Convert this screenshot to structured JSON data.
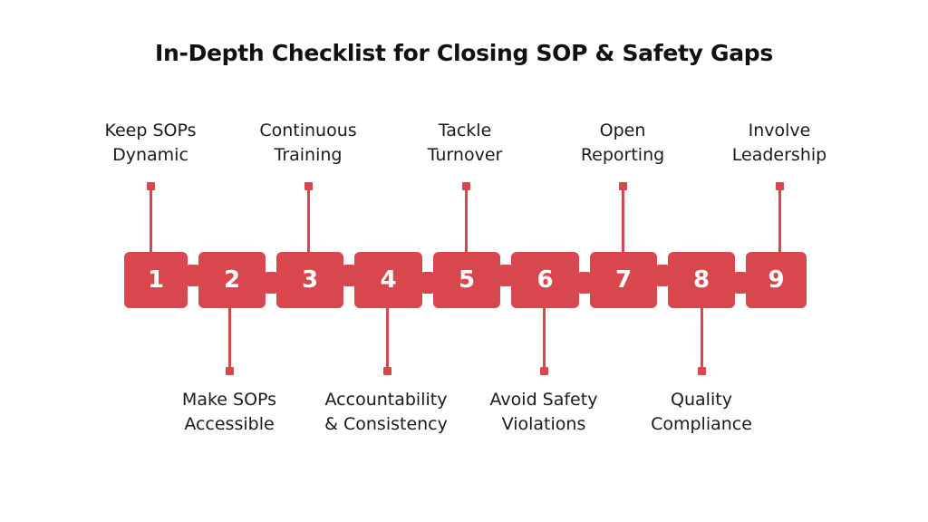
{
  "title": "In-Depth Checklist for Closing SOP & Safety Gaps",
  "accent_color": "#d9474e",
  "steps": [
    {
      "number": "1",
      "line1": "Keep SOPs",
      "line2": "Dynamic",
      "position": "top"
    },
    {
      "number": "2",
      "line1": "Make SOPs",
      "line2": "Accessible",
      "position": "bottom"
    },
    {
      "number": "3",
      "line1": "Continuous",
      "line2": "Training",
      "position": "top"
    },
    {
      "number": "4",
      "line1": "Accountability",
      "line2": "& Consistency",
      "position": "bottom"
    },
    {
      "number": "5",
      "line1": "Tackle",
      "line2": "Turnover",
      "position": "top"
    },
    {
      "number": "6",
      "line1": "Avoid Safety",
      "line2": "Violations",
      "position": "bottom"
    },
    {
      "number": "7",
      "line1": "Open",
      "line2": "Reporting",
      "position": "top"
    },
    {
      "number": "8",
      "line1": "Quality",
      "line2": "Compliance",
      "position": "bottom"
    },
    {
      "number": "9",
      "line1": "Involve",
      "line2": "Leadership",
      "position": "top"
    }
  ]
}
